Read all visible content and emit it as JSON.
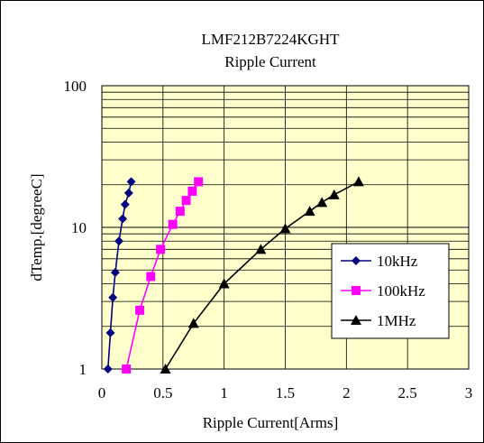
{
  "chart_data": {
    "type": "line",
    "title": "LMF212B7224KGHT",
    "subtitle": "Ripple Current",
    "xlabel": "Ripple Current[Arms]",
    "ylabel": "dTemp.[degreeC]",
    "xlim": [
      0,
      3
    ],
    "ylim": [
      1,
      100
    ],
    "yscale": "log",
    "x_ticks": [
      "0",
      "0.5",
      "1",
      "1.5",
      "2",
      "2.5",
      "3"
    ],
    "y_ticks": [
      "1",
      "10",
      "100"
    ],
    "grid": true,
    "legend_position": "right",
    "plot_background": "#ffffcc",
    "series": [
      {
        "name": "10kHz",
        "color": "#000080",
        "marker": "diamond",
        "points": [
          {
            "x": 0.05,
            "y": 1.0
          },
          {
            "x": 0.07,
            "y": 1.8
          },
          {
            "x": 0.09,
            "y": 3.2
          },
          {
            "x": 0.11,
            "y": 4.8
          },
          {
            "x": 0.14,
            "y": 8.0
          },
          {
            "x": 0.17,
            "y": 11.5
          },
          {
            "x": 0.19,
            "y": 14.5
          },
          {
            "x": 0.22,
            "y": 17.5
          },
          {
            "x": 0.24,
            "y": 21.0
          }
        ]
      },
      {
        "name": "100kHz",
        "color": "#ff00ff",
        "marker": "square",
        "points": [
          {
            "x": 0.2,
            "y": 1.0
          },
          {
            "x": 0.31,
            "y": 2.6
          },
          {
            "x": 0.4,
            "y": 4.5
          },
          {
            "x": 0.48,
            "y": 7.0
          },
          {
            "x": 0.58,
            "y": 10.5
          },
          {
            "x": 0.64,
            "y": 13.0
          },
          {
            "x": 0.69,
            "y": 15.5
          },
          {
            "x": 0.74,
            "y": 18.0
          },
          {
            "x": 0.79,
            "y": 21.0
          }
        ]
      },
      {
        "name": "1MHz",
        "color": "#000000",
        "marker": "triangle",
        "points": [
          {
            "x": 0.52,
            "y": 1.0
          },
          {
            "x": 0.75,
            "y": 2.1
          },
          {
            "x": 1.0,
            "y": 4.0
          },
          {
            "x": 1.3,
            "y": 7.0
          },
          {
            "x": 1.5,
            "y": 9.8
          },
          {
            "x": 1.7,
            "y": 13.0
          },
          {
            "x": 1.8,
            "y": 15.0
          },
          {
            "x": 1.9,
            "y": 17.0
          },
          {
            "x": 2.1,
            "y": 21.0
          }
        ]
      }
    ]
  }
}
